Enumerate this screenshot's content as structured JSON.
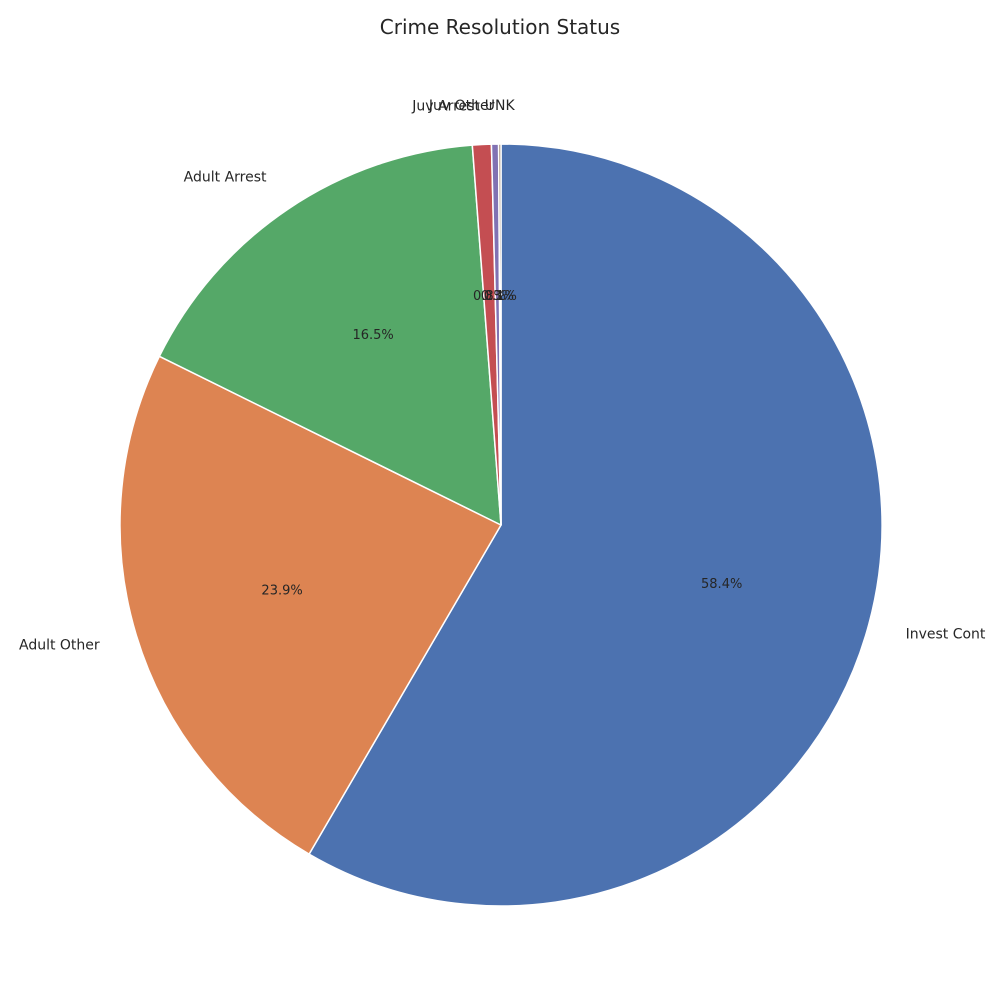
{
  "chart_data": {
    "type": "pie",
    "title": "Crime Resolution Status",
    "start_angle_deg": 90,
    "direction": "clockwise",
    "slices": [
      {
        "label": "Invest Cont",
        "value": 58.4,
        "pct_text": "58.4%",
        "color": "#4C72B0"
      },
      {
        "label": "Adult Other",
        "value": 23.9,
        "pct_text": "23.9%",
        "color": "#DD8452"
      },
      {
        "label": "Adult Arrest",
        "value": 16.5,
        "pct_text": "16.5%",
        "color": "#55A868"
      },
      {
        "label": "Juv Arrest",
        "value": 0.8,
        "pct_text": "0.8%",
        "color": "#C44E52"
      },
      {
        "label": "Juv Other",
        "value": 0.3,
        "pct_text": "0.3%",
        "color": "#8172B3"
      },
      {
        "label": "UNK",
        "value": 0.1,
        "pct_text": "0.1%",
        "color": "#937860"
      }
    ]
  }
}
